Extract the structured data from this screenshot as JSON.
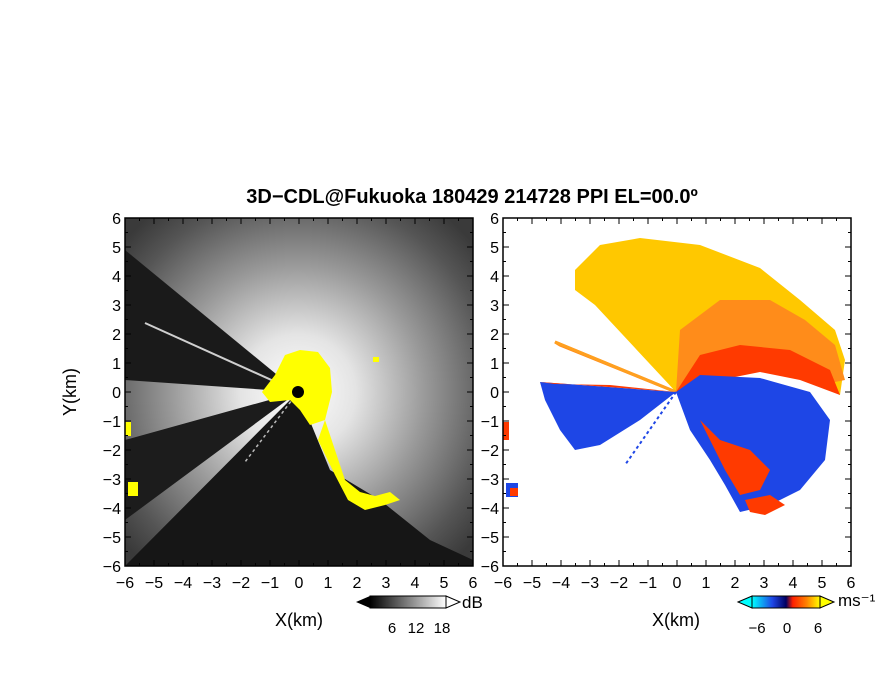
{
  "title": "3D−CDL@Fukuoka 180429 214728 PPI EL=00.0º",
  "chart_data": [
    {
      "type": "heatmap",
      "name": "reflectivity-panel",
      "xlabel": "X(km)",
      "ylabel": "Y(km)",
      "xlim": [
        -6,
        6
      ],
      "ylim": [
        -6,
        6
      ],
      "xticks": [
        "−6",
        "−5",
        "−4",
        "−3",
        "−2",
        "−1",
        "0",
        "1",
        "2",
        "3",
        "4",
        "5",
        "6"
      ],
      "yticks": [
        "6",
        "5",
        "4",
        "3",
        "2",
        "1",
        "0",
        "−1",
        "−2",
        "−3",
        "−4",
        "−5",
        "−6"
      ],
      "colorbar": {
        "unit": "dB",
        "ticks": [
          "6",
          "12",
          "18"
        ],
        "colormap": "grayscale"
      },
      "highlight_color": "#ffff00"
    },
    {
      "type": "heatmap",
      "name": "doppler-velocity-panel",
      "xlabel": "X(km)",
      "xlim": [
        -6,
        6
      ],
      "ylim": [
        -6,
        6
      ],
      "xticks": [
        "−6",
        "−5",
        "−4",
        "−3",
        "−2",
        "−1",
        "0",
        "1",
        "2",
        "3",
        "4",
        "5",
        "6"
      ],
      "yticks": [
        "6",
        "5",
        "4",
        "3",
        "2",
        "1",
        "0",
        "−1",
        "−2",
        "−3",
        "−4",
        "−5",
        "−6"
      ],
      "colorbar": {
        "unit": "ms⁻¹",
        "ticks": [
          "−6",
          "0",
          "6"
        ],
        "colormap": "diverging-cyan-blue-red-yellow"
      },
      "colors": {
        "approaching": "#1e46e6",
        "receding": "#ff3a00",
        "receding_far": "#ffc800"
      }
    }
  ]
}
